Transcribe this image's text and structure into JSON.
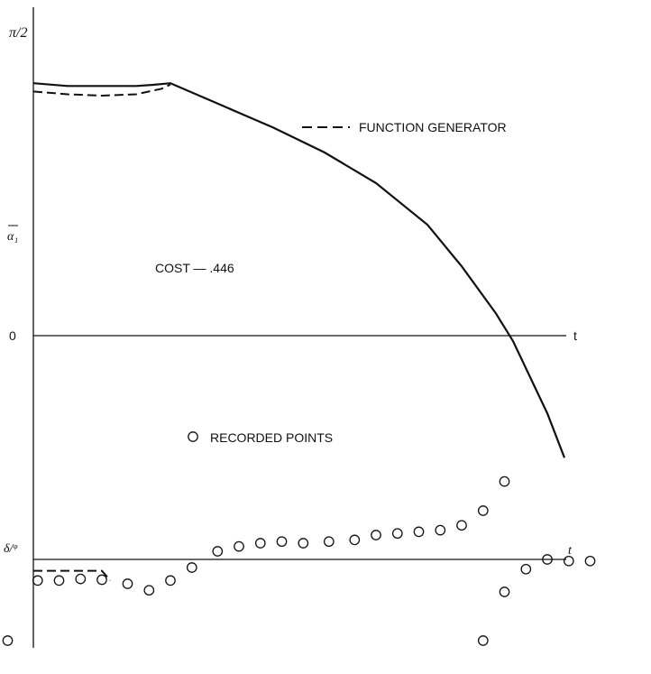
{
  "chart_data": {
    "type": "line",
    "labels": {
      "pi_half": "π/2",
      "alpha": "α₁",
      "zero": "0",
      "t_top": "t",
      "t_bottom": "t",
      "delta_phi": "δ/ᵠ",
      "cost": "COST — .446",
      "legend_dashed": "FUNCTION GENERATOR",
      "legend_circles": "RECORDED POINTS"
    },
    "upper": {
      "solid": [
        [
          0,
          0.91
        ],
        [
          0.04,
          0.9
        ],
        [
          0.08,
          0.9
        ],
        [
          0.12,
          0.9
        ],
        [
          0.14,
          0.904
        ],
        [
          0.16,
          0.91
        ],
        [
          0.22,
          0.83
        ],
        [
          0.28,
          0.75
        ],
        [
          0.34,
          0.66
        ],
        [
          0.4,
          0.55
        ],
        [
          0.46,
          0.4
        ],
        [
          0.5,
          0.25
        ],
        [
          0.54,
          0.08
        ],
        [
          0.56,
          -0.02
        ],
        [
          0.6,
          -0.28
        ],
        [
          0.62,
          -0.44
        ]
      ],
      "dashed": [
        [
          0,
          0.88
        ],
        [
          0.04,
          0.87
        ],
        [
          0.08,
          0.865
        ],
        [
          0.12,
          0.87
        ],
        [
          0.15,
          0.89
        ],
        [
          0.16,
          0.905
        ]
      ]
    },
    "lower": {
      "dashed": [
        [
          0,
          -0.07
        ],
        [
          0.06,
          -0.07
        ],
        [
          0.08,
          -0.07
        ],
        [
          0.09,
          -0.13
        ]
      ],
      "points": [
        [
          -0.03,
          -0.5
        ],
        [
          0.005,
          -0.13
        ],
        [
          0.03,
          -0.13
        ],
        [
          0.055,
          -0.12
        ],
        [
          0.08,
          -0.125
        ],
        [
          0.11,
          -0.15
        ],
        [
          0.135,
          -0.19
        ],
        [
          0.16,
          -0.13
        ],
        [
          0.185,
          -0.05
        ],
        [
          0.215,
          0.05
        ],
        [
          0.24,
          0.08
        ],
        [
          0.265,
          0.1
        ],
        [
          0.29,
          0.11
        ],
        [
          0.315,
          0.1
        ],
        [
          0.345,
          0.11
        ],
        [
          0.375,
          0.12
        ],
        [
          0.4,
          0.15
        ],
        [
          0.425,
          0.16
        ],
        [
          0.45,
          0.17
        ],
        [
          0.475,
          0.18
        ],
        [
          0.5,
          0.21
        ],
        [
          0.525,
          0.3
        ],
        [
          0.55,
          0.48
        ],
        [
          0.525,
          -0.5
        ],
        [
          0.55,
          -0.2
        ],
        [
          0.575,
          -0.06
        ],
        [
          0.6,
          0.0
        ],
        [
          0.625,
          -0.01
        ],
        [
          0.65,
          -0.01
        ]
      ]
    }
  }
}
